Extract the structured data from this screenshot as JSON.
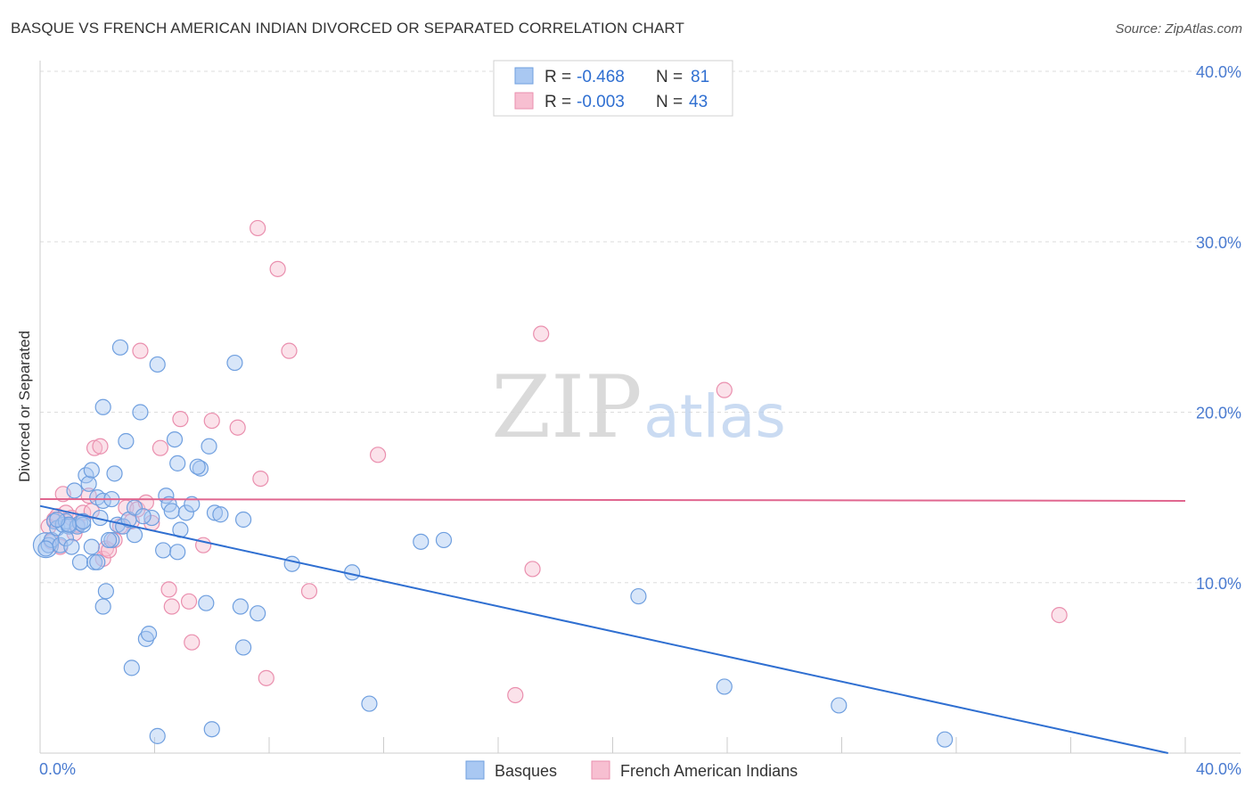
{
  "title": "BASQUE VS FRENCH AMERICAN INDIAN DIVORCED OR SEPARATED CORRELATION CHART",
  "source": "Source: ZipAtlas.com",
  "watermark": {
    "zip": "ZIP",
    "atlas": "atlas"
  },
  "colors": {
    "blue_fill": "#a9c8f2",
    "blue_stroke": "#6f9fdf",
    "blue_line": "#2f6fd1",
    "pink_fill": "#f7bfd1",
    "pink_stroke": "#ea8fae",
    "pink_line": "#e0668f",
    "grid": "#dddddd",
    "axis_text": "#4a7bd0"
  },
  "stats": [
    {
      "r_label": "R =",
      "r_value": "-0.468",
      "n_label": "N =",
      "n_value": "81"
    },
    {
      "r_label": "R =",
      "r_value": "-0.003",
      "n_label": "N =",
      "n_value": "43"
    }
  ],
  "chart_data": {
    "type": "scatter",
    "title": "BASQUE VS FRENCH AMERICAN INDIAN DIVORCED OR SEPARATED CORRELATION CHART",
    "xlabel": "",
    "ylabel": "Divorced or Separated",
    "xlim": [
      0,
      40
    ],
    "ylim": [
      0,
      40
    ],
    "x_tick_labels": [
      "0.0%",
      "40.0%"
    ],
    "y_ticks": [
      10,
      20,
      30,
      40
    ],
    "y_tick_labels": [
      "10.0%",
      "20.0%",
      "30.0%",
      "40.0%"
    ],
    "grid": true,
    "legend_position": "bottom-center",
    "series": [
      {
        "name": "Basques",
        "trend": {
          "x": [
            0,
            39.4
          ],
          "y": [
            14.5,
            0
          ]
        },
        "points": [
          [
            0.3,
            12.2
          ],
          [
            0.4,
            12.5
          ],
          [
            0.5,
            13.6
          ],
          [
            0.6,
            13.2
          ],
          [
            0.7,
            12.2
          ],
          [
            0.8,
            13.4
          ],
          [
            0.9,
            13.6
          ],
          [
            1.0,
            13.3
          ],
          [
            0.9,
            12.6
          ],
          [
            1.1,
            12.1
          ],
          [
            1.2,
            15.4
          ],
          [
            1.3,
            13.3
          ],
          [
            1.4,
            13.5
          ],
          [
            1.5,
            13.4
          ],
          [
            1.4,
            11.2
          ],
          [
            1.6,
            16.3
          ],
          [
            1.7,
            15.8
          ],
          [
            1.8,
            16.6
          ],
          [
            1.8,
            12.1
          ],
          [
            1.9,
            11.2
          ],
          [
            2.0,
            15.0
          ],
          [
            2.0,
            11.2
          ],
          [
            2.1,
            13.8
          ],
          [
            2.2,
            14.8
          ],
          [
            2.2,
            20.3
          ],
          [
            2.3,
            9.5
          ],
          [
            2.2,
            8.6
          ],
          [
            2.5,
            12.5
          ],
          [
            2.5,
            14.9
          ],
          [
            2.6,
            16.4
          ],
          [
            2.7,
            13.4
          ],
          [
            2.8,
            23.8
          ],
          [
            2.9,
            13.3
          ],
          [
            3.0,
            18.3
          ],
          [
            3.1,
            13.7
          ],
          [
            3.2,
            5.0
          ],
          [
            3.3,
            12.8
          ],
          [
            3.3,
            14.4
          ],
          [
            3.5,
            20.0
          ],
          [
            3.7,
            6.7
          ],
          [
            3.8,
            7.0
          ],
          [
            3.9,
            13.8
          ],
          [
            4.1,
            22.8
          ],
          [
            4.3,
            11.9
          ],
          [
            4.4,
            15.1
          ],
          [
            4.5,
            14.6
          ],
          [
            4.6,
            14.2
          ],
          [
            4.7,
            18.4
          ],
          [
            4.8,
            11.8
          ],
          [
            4.9,
            13.1
          ],
          [
            4.8,
            17.0
          ],
          [
            5.1,
            14.1
          ],
          [
            5.3,
            14.6
          ],
          [
            5.6,
            16.7
          ],
          [
            5.5,
            16.8
          ],
          [
            5.9,
            18.0
          ],
          [
            6.1,
            14.1
          ],
          [
            6.3,
            14.0
          ],
          [
            6.8,
            22.9
          ],
          [
            7.0,
            8.6
          ],
          [
            7.1,
            13.7
          ],
          [
            7.1,
            6.2
          ],
          [
            7.6,
            8.2
          ],
          [
            8.8,
            11.1
          ],
          [
            10.9,
            10.6
          ],
          [
            11.5,
            2.9
          ],
          [
            13.3,
            12.4
          ],
          [
            14.1,
            12.5
          ],
          [
            20.9,
            9.2
          ],
          [
            23.9,
            3.9
          ],
          [
            27.9,
            2.8
          ],
          [
            31.6,
            0.8
          ],
          [
            4.1,
            1.0
          ],
          [
            6.0,
            1.4
          ],
          [
            0.2,
            12.0
          ],
          [
            1.0,
            13.4
          ],
          [
            2.4,
            12.5
          ],
          [
            3.6,
            13.9
          ],
          [
            5.8,
            8.8
          ],
          [
            1.5,
            13.6
          ],
          [
            0.6,
            13.7
          ]
        ]
      },
      {
        "name": "French American Indians",
        "trend": {
          "x": [
            0,
            40
          ],
          "y": [
            14.9,
            14.8
          ]
        },
        "points": [
          [
            0.3,
            13.3
          ],
          [
            0.4,
            12.4
          ],
          [
            0.5,
            13.7
          ],
          [
            0.6,
            13.9
          ],
          [
            0.7,
            12.1
          ],
          [
            0.8,
            15.2
          ],
          [
            0.9,
            14.1
          ],
          [
            1.1,
            13.8
          ],
          [
            1.2,
            12.9
          ],
          [
            1.3,
            13.4
          ],
          [
            1.5,
            14.1
          ],
          [
            1.7,
            15.1
          ],
          [
            1.8,
            14.2
          ],
          [
            1.9,
            17.9
          ],
          [
            2.1,
            18.0
          ],
          [
            2.2,
            11.4
          ],
          [
            2.3,
            12.0
          ],
          [
            2.4,
            11.9
          ],
          [
            2.6,
            12.5
          ],
          [
            2.8,
            13.3
          ],
          [
            3.0,
            14.4
          ],
          [
            3.2,
            13.6
          ],
          [
            3.4,
            14.3
          ],
          [
            3.5,
            23.6
          ],
          [
            3.7,
            14.7
          ],
          [
            3.9,
            13.5
          ],
          [
            4.2,
            17.9
          ],
          [
            4.5,
            9.6
          ],
          [
            4.6,
            8.6
          ],
          [
            4.9,
            19.6
          ],
          [
            5.2,
            8.9
          ],
          [
            5.3,
            6.5
          ],
          [
            5.7,
            12.2
          ],
          [
            6.0,
            19.5
          ],
          [
            6.9,
            19.1
          ],
          [
            7.6,
            30.8
          ],
          [
            7.7,
            16.1
          ],
          [
            7.9,
            4.4
          ],
          [
            8.3,
            28.4
          ],
          [
            8.7,
            23.6
          ],
          [
            9.4,
            9.5
          ],
          [
            11.8,
            17.5
          ],
          [
            17.2,
            10.8
          ]
        ],
        "extra_points": [
          [
            17.5,
            24.6
          ],
          [
            23.9,
            21.3
          ],
          [
            35.6,
            8.1
          ],
          [
            16.6,
            3.4
          ]
        ]
      }
    ]
  },
  "legend": [
    {
      "label": "Basques"
    },
    {
      "label": "French American Indians"
    }
  ]
}
